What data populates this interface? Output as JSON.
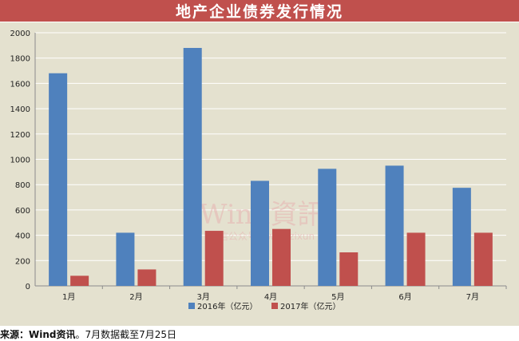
{
  "header": {
    "title": "地产企业债券发行情况"
  },
  "watermark": {
    "main": "Wind資訊",
    "sub": "微信公众号：windzixun"
  },
  "footer": {
    "source_label": "来源：Wind资讯",
    "source_note": "。7月数据截至7月25日"
  },
  "colors": {
    "header_bg": "#c0504d",
    "plot_bg": "#e4e1cf",
    "series_2016": "#4f81bd",
    "series_2017": "#c0504d"
  },
  "chart_data": {
    "type": "bar",
    "title": "地产企业债券发行情况",
    "categories": [
      "1月",
      "2月",
      "3月",
      "4月",
      "5月",
      "6月",
      "7月"
    ],
    "series": [
      {
        "name": "2016年（亿元）",
        "values": [
          1680,
          420,
          1880,
          830,
          925,
          950,
          775
        ]
      },
      {
        "name": "2017年（亿元）",
        "values": [
          80,
          130,
          435,
          450,
          265,
          420,
          420
        ]
      }
    ],
    "ylim": [
      0,
      2000
    ],
    "yticks": [
      0,
      200,
      400,
      600,
      800,
      1000,
      1200,
      1400,
      1600,
      1800,
      2000
    ],
    "grid": true,
    "legend": "bottom"
  }
}
